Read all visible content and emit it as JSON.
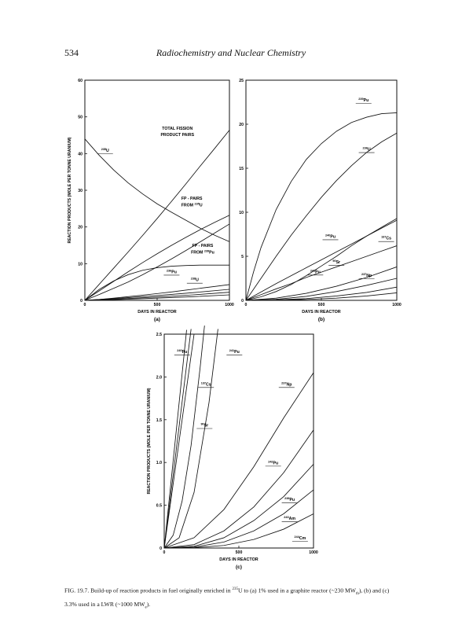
{
  "header": {
    "page_number": "534",
    "running_title": "Radiochemistry and Nuclear Chemistry"
  },
  "caption": {
    "lead": "FIG. 19.7. Build-up of reaction products in fuel originally enriched in ",
    "iso_sup": "235",
    "iso_el": "U",
    "mid": " to (a) 1% used in a graphite reactor (~230 MW",
    "sub1": "th",
    "mid2": "), (b) and (c) 3.3% used in a LWR (~1000 MW",
    "sub2": "e",
    "end": ")."
  },
  "chart_data": [
    {
      "id": "a",
      "type": "line",
      "panel_label": "(a)",
      "xlabel": "DAYS IN REACTOR",
      "ylabel": "REACTION PRODUCTS (MOLE PER TONNE URANIUM)",
      "xlim": [
        0,
        1000
      ],
      "ylim": [
        0,
        60
      ],
      "x_ticks": [
        0,
        500,
        1000
      ],
      "y_ticks": [
        0,
        10,
        20,
        30,
        40,
        50,
        60
      ],
      "grid": false,
      "series": [
        {
          "x": [
            0,
            100,
            200,
            300,
            400,
            500,
            600,
            700,
            800,
            900,
            1000
          ],
          "y": [
            44,
            39.5,
            35.5,
            32,
            29,
            26.3,
            24,
            21.8,
            19.6,
            17.7,
            16
          ]
        },
        {
          "x": [
            0,
            100,
            200,
            300,
            400,
            500,
            600,
            700,
            800,
            900,
            1000
          ],
          "y": [
            0,
            4.4,
            8.8,
            13.2,
            17.7,
            22.3,
            27,
            31.8,
            36.7,
            41.5,
            46.4
          ]
        },
        {
          "x": [
            0,
            100,
            200,
            300,
            400,
            500,
            600,
            700,
            800,
            900,
            1000
          ],
          "y": [
            0,
            2.6,
            5.2,
            7.8,
            10.3,
            12.7,
            15,
            17.2,
            19.3,
            21.3,
            23.2
          ]
        },
        {
          "x": [
            0,
            100,
            200,
            300,
            400,
            500,
            600,
            700,
            800,
            900,
            1000
          ],
          "y": [
            0,
            1.6,
            3.3,
            5,
            7,
            9.1,
            11.3,
            13.6,
            16,
            18.4,
            20.8
          ]
        },
        {
          "x": [
            0,
            100,
            200,
            300,
            400,
            500,
            600,
            700,
            800,
            900,
            1000
          ],
          "y": [
            0,
            3,
            5.3,
            7,
            8.2,
            8.9,
            9.3,
            9.5,
            9.6,
            9.6,
            9.6
          ]
        },
        {
          "x": [
            0,
            100,
            200,
            300,
            400,
            500,
            600,
            700,
            800,
            900,
            1000
          ],
          "y": [
            0,
            0.25,
            0.6,
            1,
            1.4,
            1.85,
            2.3,
            2.8,
            3.3,
            3.8,
            4.3
          ]
        },
        {
          "x": [
            0,
            250,
            500,
            750,
            1000
          ],
          "y": [
            0,
            0.6,
            1.3,
            2.1,
            3.0
          ]
        },
        {
          "x": [
            0,
            250,
            500,
            750,
            1000
          ],
          "y": [
            0,
            0.4,
            0.9,
            1.5,
            2.2
          ]
        },
        {
          "x": [
            0,
            250,
            500,
            750,
            1000
          ],
          "y": [
            0,
            0.25,
            0.6,
            1.0,
            1.5
          ]
        }
      ],
      "annotations": [
        {
          "text": "TOTAL FISSION",
          "x": 640,
          "y": 46.5,
          "anchor": "middle"
        },
        {
          "text": "PRODUCT PAIRS",
          "x": 640,
          "y": 44.8,
          "anchor": "middle"
        },
        {
          "text": "FP - PAIRS",
          "x": 740,
          "y": 27.4,
          "anchor": "middle"
        },
        {
          "text": "FROM 235U",
          "x": 740,
          "y": 25.6,
          "anchor": "middle"
        },
        {
          "text": "FP - PAIRS",
          "x": 815,
          "y": 14.6,
          "anchor": "middle"
        },
        {
          "text": "FROM 239Pu",
          "x": 815,
          "y": 12.8,
          "anchor": "middle"
        },
        {
          "text": "235U",
          "x": 140,
          "y": 40.5,
          "anchor": "middle"
        },
        {
          "text": "236Pu",
          "x": 600,
          "y": 7.4,
          "anchor": "middle"
        },
        {
          "text": "238U",
          "x": 760,
          "y": 5.2,
          "anchor": "middle"
        }
      ]
    },
    {
      "id": "b",
      "type": "line",
      "panel_label": "(b)",
      "xlabel": "DAYS IN REACTOR",
      "ylabel": "",
      "xlim": [
        0,
        1000
      ],
      "ylim": [
        0,
        25
      ],
      "x_ticks": [
        0,
        500,
        1000
      ],
      "y_ticks": [
        0,
        5,
        10,
        15,
        20,
        25
      ],
      "grid": false,
      "series": [
        {
          "x": [
            0,
            50,
            100,
            200,
            300,
            400,
            500,
            600,
            700,
            800,
            900,
            1000
          ],
          "y": [
            0,
            3.2,
            6,
            10.3,
            13.5,
            16,
            17.8,
            19.2,
            20.2,
            20.8,
            21.2,
            21.3
          ]
        },
        {
          "x": [
            0,
            100,
            200,
            300,
            400,
            500,
            600,
            700,
            800,
            900,
            1000
          ],
          "y": [
            0,
            2.5,
            5,
            7.4,
            9.6,
            11.7,
            13.6,
            15.3,
            16.8,
            18,
            19
          ]
        },
        {
          "x": [
            0,
            100,
            200,
            300,
            400,
            500,
            600,
            700,
            800,
            900,
            1000
          ],
          "y": [
            0,
            0.4,
            1,
            1.8,
            2.8,
            3.9,
            5,
            6.2,
            7.3,
            8.3,
            9.3
          ]
        },
        {
          "x": [
            0,
            100,
            200,
            300,
            400,
            500,
            600,
            700,
            800,
            900,
            1000
          ],
          "y": [
            0,
            0.95,
            1.9,
            2.8,
            3.7,
            4.6,
            5.5,
            6.4,
            7.3,
            8.2,
            9.1
          ]
        },
        {
          "x": [
            0,
            100,
            200,
            300,
            400,
            500,
            600,
            700,
            800,
            900,
            1000
          ],
          "y": [
            0,
            0.65,
            1.3,
            1.9,
            2.6,
            3.2,
            3.8,
            4.4,
            5,
            5.6,
            6.2
          ]
        },
        {
          "x": [
            0,
            200,
            400,
            600,
            800,
            1000
          ],
          "y": [
            0,
            0.25,
            0.8,
            1.6,
            2.6,
            3.8
          ]
        },
        {
          "x": [
            0,
            200,
            400,
            600,
            800,
            1000
          ],
          "y": [
            0,
            0.12,
            0.45,
            1.0,
            1.7,
            2.5
          ]
        },
        {
          "x": [
            0,
            200,
            400,
            600,
            800,
            1000
          ],
          "y": [
            0,
            0.05,
            0.2,
            0.5,
            0.9,
            1.5
          ]
        },
        {
          "x": [
            0,
            200,
            400,
            600,
            800,
            1000
          ],
          "y": [
            0,
            0.02,
            0.1,
            0.25,
            0.5,
            0.85
          ]
        }
      ],
      "annotations": [
        {
          "text": "239Pu",
          "x": 780,
          "y": 22.6,
          "anchor": "middle"
        },
        {
          "text": "236U",
          "x": 800,
          "y": 17,
          "anchor": "middle"
        },
        {
          "text": "240Pu",
          "x": 560,
          "y": 7.1,
          "anchor": "middle"
        },
        {
          "text": "137Cs",
          "x": 930,
          "y": 6.9,
          "anchor": "middle"
        },
        {
          "text": "90Sr",
          "x": 600,
          "y": 4.2,
          "anchor": "middle"
        },
        {
          "text": "241Pu",
          "x": 460,
          "y": 3.1,
          "anchor": "middle"
        },
        {
          "text": "237Np",
          "x": 800,
          "y": 2.7,
          "anchor": "middle"
        }
      ]
    },
    {
      "id": "c",
      "type": "line",
      "panel_label": "(c)",
      "xlabel": "DAYS IN REACTOR",
      "ylabel": "REACTION PRODUCTS (MOLE PER TONNE URANIUM)",
      "xlim": [
        0,
        1000
      ],
      "ylim": [
        0,
        2.5
      ],
      "x_ticks": [
        0,
        500,
        1000
      ],
      "y_ticks": [
        0,
        0.5,
        1.0,
        1.5,
        2.0,
        2.5
      ],
      "y_tick_labels": [
        "0",
        "0.5",
        "1.0",
        "1.5",
        "2.0",
        "2.5"
      ],
      "grid": false,
      "series": [
        {
          "x": [
            0,
            40,
            80,
            120,
            150
          ],
          "y": [
            0,
            0.68,
            1.36,
            2.04,
            2.55
          ]
        },
        {
          "x": [
            0,
            40,
            80,
            120,
            160,
            180
          ],
          "y": [
            0,
            0.57,
            1.14,
            1.71,
            2.28,
            2.56
          ]
        },
        {
          "x": [
            0,
            40,
            80,
            120,
            160,
            200
          ],
          "y": [
            0,
            0.5,
            1.0,
            1.5,
            2.0,
            2.5
          ]
        },
        {
          "x": [
            0,
            60,
            120,
            180,
            240,
            270
          ],
          "y": [
            0,
            0.15,
            0.55,
            1.2,
            2.1,
            2.6
          ]
        },
        {
          "x": [
            0,
            100,
            200,
            300,
            360
          ],
          "y": [
            0,
            0.12,
            0.65,
            1.7,
            2.56
          ]
        },
        {
          "x": [
            0,
            200,
            400,
            600,
            800,
            1000
          ],
          "y": [
            0,
            0.12,
            0.45,
            0.95,
            1.52,
            2.05
          ]
        },
        {
          "x": [
            0,
            200,
            400,
            600,
            800,
            1000
          ],
          "y": [
            0,
            0.04,
            0.2,
            0.48,
            0.88,
            1.38
          ]
        },
        {
          "x": [
            0,
            200,
            400,
            600,
            800,
            1000
          ],
          "y": [
            0,
            0.02,
            0.12,
            0.32,
            0.6,
            0.98
          ]
        },
        {
          "x": [
            0,
            200,
            400,
            600,
            800,
            1000
          ],
          "y": [
            0,
            0.01,
            0.07,
            0.2,
            0.4,
            0.68
          ]
        },
        {
          "x": [
            0,
            200,
            400,
            600,
            800,
            1000
          ],
          "y": [
            0,
            0.004,
            0.03,
            0.1,
            0.22,
            0.4
          ]
        }
      ],
      "annotations": [
        {
          "text": "240Pu",
          "x": 120,
          "y": 2.28,
          "anchor": "middle"
        },
        {
          "text": "241Pu",
          "x": 470,
          "y": 2.28,
          "anchor": "middle"
        },
        {
          "text": "137Cs",
          "x": 280,
          "y": 1.9,
          "anchor": "middle"
        },
        {
          "text": "237Np",
          "x": 820,
          "y": 1.9,
          "anchor": "middle"
        },
        {
          "text": "90Sr",
          "x": 270,
          "y": 1.42,
          "anchor": "middle"
        },
        {
          "text": "242Pu",
          "x": 730,
          "y": 0.98,
          "anchor": "middle"
        },
        {
          "text": "238Pu",
          "x": 840,
          "y": 0.55,
          "anchor": "middle"
        },
        {
          "text": "243Am",
          "x": 840,
          "y": 0.33,
          "anchor": "middle"
        },
        {
          "text": "244Cm",
          "x": 910,
          "y": 0.1,
          "anchor": "middle"
        }
      ]
    }
  ]
}
